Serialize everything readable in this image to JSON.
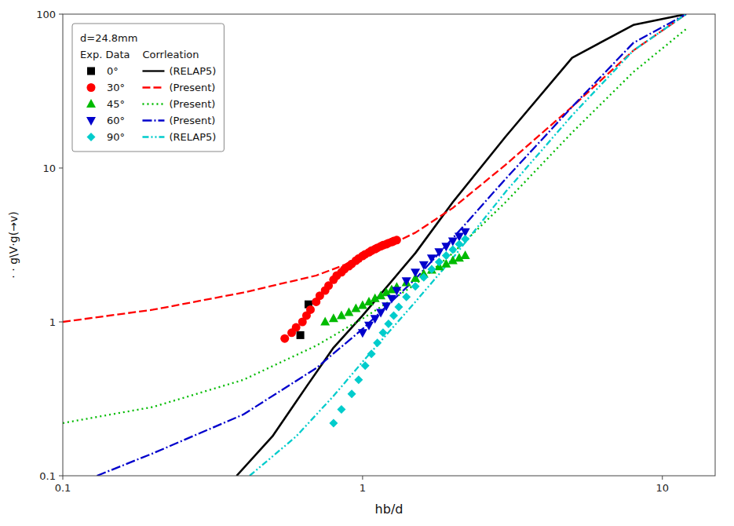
{
  "chart_data": {
    "type": "line",
    "xlabel": "hb/d",
    "ylabel": "· · g\\V·g(→v)",
    "log": true,
    "grid": false,
    "legend": "upper left",
    "legend_title": "d=24.8mm",
    "legend_columns": [
      "Exp. Data",
      "Corrleation"
    ],
    "xlim": [
      0.1,
      15
    ],
    "ylim": [
      0.1,
      100
    ],
    "xticks": [
      0.1,
      1,
      10
    ],
    "yticks": [
      0.1,
      1,
      10,
      100
    ],
    "series": [
      {
        "name": "(RELAP5)",
        "type": "line",
        "color": "#000000",
        "line_style": "solid",
        "x": [
          0.38,
          0.5,
          0.65,
          0.8,
          1.0,
          1.5,
          2.0,
          3.0,
          5.0,
          8.0,
          12.0
        ],
        "values": [
          0.1,
          0.18,
          0.38,
          0.68,
          1.1,
          2.8,
          6.0,
          16.0,
          52.0,
          85.0,
          100.0
        ]
      },
      {
        "name": "(Present)",
        "type": "line",
        "color": "#ff0000",
        "line_style": "dashed",
        "x": [
          0.1,
          0.2,
          0.4,
          0.7,
          1.0,
          1.5,
          2.0,
          3.0,
          5.0,
          8.0,
          12.0
        ],
        "values": [
          1.0,
          1.2,
          1.55,
          2.0,
          2.6,
          3.8,
          5.5,
          10.5,
          25.0,
          58.0,
          100.0
        ]
      },
      {
        "name": "(Present)",
        "type": "line",
        "color": "#00bb00",
        "line_style": "dotted",
        "x": [
          0.1,
          0.2,
          0.4,
          0.7,
          1.0,
          1.5,
          2.0,
          3.0,
          5.0,
          8.0,
          12.0
        ],
        "values": [
          0.22,
          0.28,
          0.42,
          0.7,
          1.05,
          1.75,
          2.8,
          6.0,
          17.0,
          42.0,
          80.0
        ]
      },
      {
        "name": "(Present)",
        "type": "line",
        "color": "#0000cc",
        "line_style": "dashdot",
        "x": [
          0.13,
          0.2,
          0.4,
          0.7,
          1.0,
          1.5,
          2.0,
          3.0,
          5.0,
          8.0,
          12.0
        ],
        "values": [
          0.1,
          0.14,
          0.25,
          0.5,
          0.9,
          1.9,
          3.5,
          8.5,
          25.0,
          65.0,
          100.0
        ]
      },
      {
        "name": "(RELAP5)",
        "type": "line",
        "color": "#00cccc",
        "line_style": "dashdotdot",
        "x": [
          0.42,
          0.6,
          0.8,
          1.0,
          1.5,
          2.0,
          3.0,
          5.0,
          8.0,
          12.0
        ],
        "values": [
          0.1,
          0.18,
          0.33,
          0.55,
          1.35,
          2.6,
          7.0,
          22.0,
          58.0,
          100.0
        ]
      },
      {
        "name": "0°",
        "type": "scatter",
        "color": "#000000",
        "marker": "square",
        "x": [
          0.62,
          0.66
        ],
        "values": [
          0.82,
          1.3
        ]
      },
      {
        "name": "30°",
        "type": "scatter",
        "color": "#ff0000",
        "marker": "circle",
        "x": [
          0.55,
          0.58,
          0.6,
          0.63,
          0.65,
          0.67,
          0.7,
          0.72,
          0.75,
          0.77,
          0.8,
          0.82,
          0.85,
          0.87,
          0.9,
          0.92,
          0.95,
          0.97,
          1.0,
          1.02,
          1.05,
          1.07,
          1.1,
          1.12,
          1.15,
          1.17,
          1.2,
          1.22,
          1.25,
          1.27,
          1.3
        ],
        "values": [
          0.78,
          0.85,
          0.92,
          1.0,
          1.1,
          1.2,
          1.35,
          1.48,
          1.6,
          1.72,
          1.88,
          2.0,
          2.1,
          2.2,
          2.3,
          2.38,
          2.5,
          2.58,
          2.68,
          2.75,
          2.83,
          2.9,
          2.97,
          3.03,
          3.1,
          3.15,
          3.2,
          3.25,
          3.3,
          3.35,
          3.4
        ]
      },
      {
        "name": "45°",
        "type": "scatter",
        "color": "#00bb00",
        "marker": "triangle-up",
        "x": [
          0.75,
          0.8,
          0.85,
          0.9,
          0.95,
          1.0,
          1.05,
          1.1,
          1.15,
          1.2,
          1.25,
          1.3,
          1.4,
          1.5,
          1.6,
          1.7,
          1.8,
          1.9,
          2.0,
          2.1,
          2.2
        ],
        "values": [
          1.0,
          1.05,
          1.1,
          1.15,
          1.22,
          1.28,
          1.35,
          1.42,
          1.48,
          1.55,
          1.62,
          1.68,
          1.8,
          1.92,
          2.05,
          2.17,
          2.28,
          2.38,
          2.5,
          2.6,
          2.7
        ]
      },
      {
        "name": "60°",
        "type": "scatter",
        "color": "#0000cc",
        "marker": "triangle-down",
        "x": [
          1.0,
          1.05,
          1.1,
          1.15,
          1.2,
          1.25,
          1.3,
          1.4,
          1.5,
          1.6,
          1.7,
          1.8,
          1.9,
          2.0,
          2.1,
          2.2
        ],
        "values": [
          0.85,
          0.95,
          1.05,
          1.15,
          1.27,
          1.42,
          1.6,
          1.85,
          2.1,
          2.35,
          2.6,
          2.85,
          3.1,
          3.35,
          3.6,
          3.85
        ]
      },
      {
        "name": "90°",
        "type": "scatter",
        "color": "#00cccc",
        "marker": "diamond",
        "x": [
          0.8,
          0.85,
          0.92,
          0.97,
          1.02,
          1.07,
          1.12,
          1.17,
          1.22,
          1.27,
          1.32,
          1.4,
          1.5,
          1.6,
          1.7,
          1.8,
          1.9,
          2.0,
          2.1,
          2.2
        ],
        "values": [
          0.22,
          0.27,
          0.34,
          0.42,
          0.52,
          0.62,
          0.73,
          0.85,
          0.97,
          1.1,
          1.25,
          1.45,
          1.7,
          1.95,
          2.2,
          2.45,
          2.7,
          2.95,
          3.2,
          3.45
        ]
      }
    ]
  }
}
